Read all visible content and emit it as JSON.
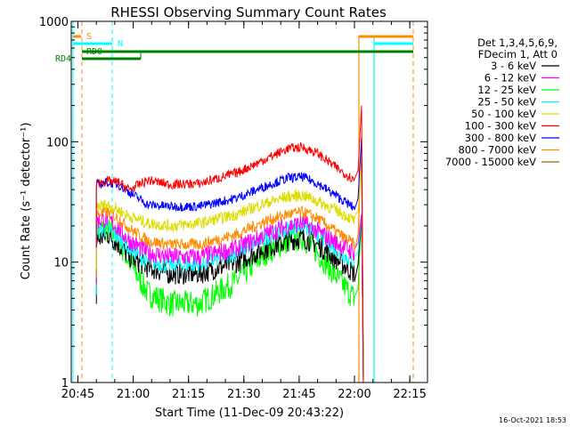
{
  "chart_data": {
    "type": "line",
    "title": "RHESSI Observing Summary Count Rates",
    "xlabel": "Start Time (11-Dec-09 20:43:22)",
    "ylabel": "Count Rate (s⁻¹ detector⁻¹)",
    "yscale": "log",
    "ylim": [
      1,
      1000
    ],
    "xlim_minutes": [
      20.72,
      22.33
    ],
    "x_tick_labels": [
      "20:45",
      "21:00",
      "21:15",
      "21:30",
      "21:45",
      "22:00",
      "22:15"
    ],
    "y_tick_labels": [
      "1",
      "10",
      "100",
      "1000"
    ],
    "legend_header": [
      "Det 1,3,4,5,6,9,",
      "FDecim 1, Att 0"
    ],
    "legend_position": "right",
    "timestamp": "16-Oct-2021 18:53",
    "series": [
      {
        "name": "3 - 6 keV",
        "color": "#000000",
        "times": [
          "20:50",
          "20:53",
          "20:56",
          "20:59",
          "21:04",
          "21:10",
          "21:18",
          "21:28",
          "21:36",
          "21:42",
          "21:46",
          "21:50",
          "21:56",
          "22:00"
        ],
        "values": [
          15,
          17,
          14,
          11,
          9,
          8,
          8,
          10,
          13,
          15,
          16,
          14,
          10,
          8
        ]
      },
      {
        "name": "6 - 12 keV",
        "color": "#ff00ff",
        "times": [
          "20:50",
          "20:53",
          "20:56",
          "20:59",
          "21:04",
          "21:10",
          "21:18",
          "21:28",
          "21:36",
          "21:42",
          "21:46",
          "21:50",
          "21:56",
          "22:00"
        ],
        "values": [
          22,
          23,
          19,
          15,
          12,
          11,
          11,
          13,
          17,
          20,
          21,
          18,
          14,
          12
        ]
      },
      {
        "name": "12 - 25 keV",
        "color": "#00ff00",
        "times": [
          "20:50",
          "20:53",
          "20:56",
          "20:59",
          "21:04",
          "21:10",
          "21:18",
          "21:28",
          "21:36",
          "21:42",
          "21:46",
          "21:50",
          "21:56",
          "22:00"
        ],
        "values": [
          18,
          19,
          15,
          10,
          5.5,
          4.5,
          4.5,
          7,
          12,
          15,
          16,
          12,
          7,
          5
        ]
      },
      {
        "name": "25 - 50 keV",
        "color": "#00ffff",
        "times": [
          "20:50",
          "20:53",
          "20:56",
          "20:59",
          "21:04",
          "21:10",
          "21:18",
          "21:28",
          "21:36",
          "21:42",
          "21:46",
          "21:50",
          "21:56",
          "22:00"
        ],
        "values": [
          18,
          19,
          16,
          13,
          10,
          9.5,
          9.5,
          12,
          16,
          19,
          20,
          17,
          12,
          10
        ]
      },
      {
        "name": "50 - 100 keV",
        "color": "#dddd00",
        "times": [
          "20:50",
          "20:53",
          "20:56",
          "20:59",
          "21:04",
          "21:10",
          "21:18",
          "21:28",
          "21:36",
          "21:42",
          "21:46",
          "21:50",
          "21:56",
          "22:00"
        ],
        "values": [
          29,
          30,
          27,
          24,
          21,
          20,
          21,
          25,
          31,
          35,
          36,
          32,
          26,
          22
        ]
      },
      {
        "name": "100 - 300 keV",
        "color": "#ff0000",
        "times": [
          "20:50",
          "20:53",
          "20:56",
          "20:59",
          "21:04",
          "21:10",
          "21:18",
          "21:28",
          "21:36",
          "21:42",
          "21:46",
          "21:50",
          "21:56",
          "22:00"
        ],
        "values": [
          45,
          47,
          46,
          40,
          48,
          44,
          45,
          55,
          72,
          88,
          90,
          80,
          58,
          48
        ]
      },
      {
        "name": "300 - 800 keV",
        "color": "#0000ff",
        "times": [
          "20:50",
          "20:53",
          "20:56",
          "20:59",
          "21:04",
          "21:10",
          "21:18",
          "21:28",
          "21:36",
          "21:42",
          "21:46",
          "21:50",
          "21:56",
          "22:00"
        ],
        "values": [
          44,
          46,
          44,
          38,
          30,
          29,
          29,
          34,
          43,
          50,
          51,
          45,
          34,
          28
        ]
      },
      {
        "name": "800 - 7000 keV",
        "color": "#ff8c00",
        "times": [
          "20:50",
          "20:53",
          "20:56",
          "20:59",
          "21:04",
          "21:10",
          "21:18",
          "21:28",
          "21:36",
          "21:42",
          "21:46",
          "21:50",
          "21:56",
          "22:00"
        ],
        "values": [
          25,
          26,
          23,
          19,
          15,
          14,
          14,
          17,
          22,
          25,
          26,
          23,
          17,
          14
        ]
      },
      {
        "name": "7000 - 15000 keV",
        "color": "#996600",
        "times": [],
        "values": []
      }
    ],
    "flag_labels": [
      {
        "label": "S",
        "color": "#ff8c00"
      },
      {
        "label": "N",
        "color": "#00ffff"
      },
      {
        "label": "RD0",
        "color": "#008000"
      },
      {
        "label": "RD4",
        "color": "#008000"
      }
    ]
  }
}
